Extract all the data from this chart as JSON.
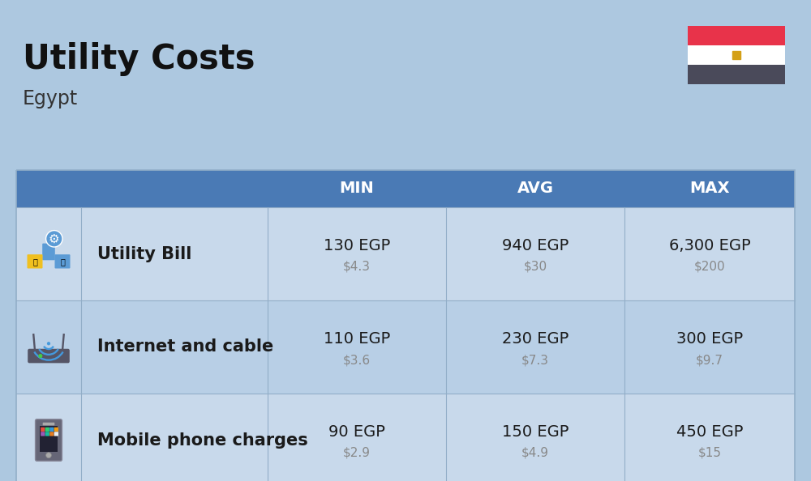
{
  "title": "Utility Costs",
  "subtitle": "Egypt",
  "background_color": "#adc8e0",
  "header_color": "#4a7ab5",
  "row_color_odd": "#c8d9eb",
  "row_color_even": "#b8cfe6",
  "header_text_color": "#ffffff",
  "cell_text_color": "#1a1a1a",
  "usd_text_color": "#888888",
  "col_headers": [
    "MIN",
    "AVG",
    "MAX"
  ],
  "rows": [
    {
      "label": "Utility Bill",
      "icon": "utility",
      "min_egp": "130 EGP",
      "min_usd": "$4.3",
      "avg_egp": "940 EGP",
      "avg_usd": "$30",
      "max_egp": "6,300 EGP",
      "max_usd": "$200"
    },
    {
      "label": "Internet and cable",
      "icon": "internet",
      "min_egp": "110 EGP",
      "min_usd": "$3.6",
      "avg_egp": "230 EGP",
      "avg_usd": "$7.3",
      "max_egp": "300 EGP",
      "max_usd": "$9.7"
    },
    {
      "label": "Mobile phone charges",
      "icon": "mobile",
      "min_egp": "90 EGP",
      "min_usd": "$2.9",
      "avg_egp": "150 EGP",
      "avg_usd": "$4.9",
      "max_egp": "450 EGP",
      "max_usd": "$15"
    }
  ],
  "flag_red": "#e8334a",
  "flag_white": "#ffffff",
  "flag_dark": "#4a4a5a",
  "flag_eagle_color": "#d4a017",
  "divider_color": "#92aec8"
}
